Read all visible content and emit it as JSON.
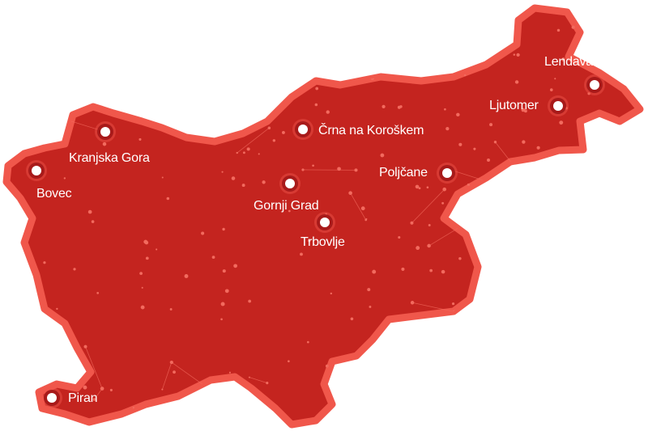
{
  "map": {
    "region": "Slovenia",
    "colors": {
      "fill": "#c4241f",
      "border": "#f0574b",
      "network": "#f26a5e",
      "marker_ring": "#a81a1a",
      "marker_center": "#ffffff"
    },
    "cities": [
      {
        "name": "Kranjska Gora"
      },
      {
        "name": "Bovec"
      },
      {
        "name": "Črna na Koroškem"
      },
      {
        "name": "Lendava"
      },
      {
        "name": "Ljutomer"
      },
      {
        "name": "Poljčane"
      },
      {
        "name": "Gornji Grad"
      },
      {
        "name": "Trbovlje"
      },
      {
        "name": "Piran"
      }
    ]
  }
}
